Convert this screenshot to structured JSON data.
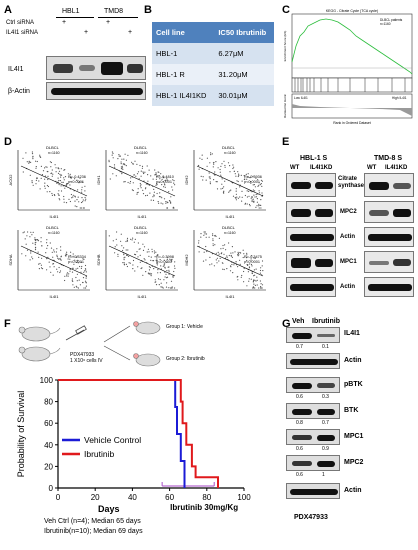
{
  "panels": {
    "A": "A",
    "B": "B",
    "C": "C",
    "D": "D",
    "E": "E",
    "F": "F",
    "G": "G"
  },
  "panel_a": {
    "cell_lines": [
      "HBL1",
      "TMD8"
    ],
    "row_labels": [
      "Ctrl siRNA",
      "IL4I1 siRNA"
    ],
    "lane_signs": {
      "ctrl": [
        "+",
        "",
        "+",
        ""
      ],
      "il4i1": [
        "",
        "+",
        "",
        "+"
      ]
    },
    "blots": [
      "IL4I1",
      "β-Actin"
    ]
  },
  "panel_b": {
    "headers": [
      "Cell line",
      "IC50 Ibrutinib"
    ],
    "rows": [
      {
        "cell": "HBL-1",
        "ic50": "6.27μM"
      },
      {
        "cell": "HBL-1 R",
        "ic50": "31.20μM"
      },
      {
        "cell": "HBL-1 IL4I1KD",
        "ic50": "30.01μM"
      }
    ]
  },
  "panel_c": {
    "title": "KEGG - Citrate Cycle (TCA cycle)",
    "stats1": "DLBCL patients",
    "stats2": "n=1160",
    "label_low": "Low IL4I1",
    "label_high": "High IL4I1",
    "xlabel": "Rank in Ordered Dataset",
    "ylabel_top": "Enrichment Score (ES)",
    "ylabel_bottom": "Ranked list metric"
  },
  "panel_d": {
    "plots": [
      {
        "title": "DLBCL",
        "n": "n=1160",
        "r": "R=-0.4236",
        "p": "p<0.0001",
        "ylabel": "ACO2",
        "xlabel": "IL4I1"
      },
      {
        "title": "DLBCL",
        "n": "n=1160",
        "r": "R=-0.4810",
        "p": "p<0.0001",
        "ylabel": "IDH1",
        "xlabel": "IL4I1"
      },
      {
        "title": "DLBCL",
        "n": "n=1160",
        "r": "R=-0.3936",
        "p": "p<0.0001",
        "ylabel": "IDH2",
        "xlabel": "IL4I1"
      },
      {
        "title": "DLBCL",
        "n": "n=1160",
        "r": "R=-0.3334",
        "p": "p<0.0001",
        "ylabel": "SDHA",
        "xlabel": "IL4I1"
      },
      {
        "title": "DLBCL",
        "n": "n=1160",
        "r": "R=-0.3998",
        "p": "p<0.0001",
        "ylabel": "SDHB",
        "xlabel": "IL4I1"
      },
      {
        "title": "DLBCL",
        "n": "n=1160",
        "r": "R=-0.3475",
        "p": "p<0.0001",
        "ylabel": "MDH2",
        "xlabel": "IL4I1"
      }
    ]
  },
  "panel_e": {
    "group1": "HBL-1 S",
    "group2": "TMD-8 S",
    "lanes1": [
      "WT",
      "IL4I1KD"
    ],
    "lanes2": [
      "WT",
      "IL4I1KD"
    ],
    "blots": [
      "Citrate synthase",
      "MPC2",
      "Actin",
      "MPC1",
      "Actin"
    ]
  },
  "panel_f": {
    "pdx": "PDX47933",
    "cells": "1 X10⁶ cells IV",
    "group1": "Group 1: Vehicle",
    "group2": "Group 2: Ibrutinib",
    "legend": [
      "Vehicle Control",
      "Ibrutinib"
    ],
    "xlabel": "Days",
    "ylabel": "Probability of Survival",
    "treatment_label": "Ibrutinib 30mg/Kg",
    "summary1": "Veh Ctrl (n=4); Median 65 days",
    "summary2": "Ibrutinib(n=10); Median 69 days",
    "colors": {
      "vehicle": "#1b1bd6",
      "ibrutinib": "#e0191c",
      "treatment": "#b76bd1"
    }
  },
  "panel_g": {
    "lanes": [
      "Veh",
      "Ibrutinib"
    ],
    "blots": [
      "IL4I1",
      "Actin",
      "pBTK",
      "BTK",
      "MPC1",
      "MPC2",
      "Actin"
    ],
    "quant": {
      "IL4I1": [
        "0.7",
        "0.1"
      ],
      "pBTK": [
        "0.6",
        "0.3"
      ],
      "BTK": [
        "0.8",
        "0.7"
      ],
      "MPC1": [
        "0.6",
        "0.9"
      ],
      "MPC2": [
        "0.6",
        "1"
      ]
    },
    "model": "PDX47933"
  },
  "chart_data": {
    "type": "line",
    "xlabel": "Days",
    "ylabel": "Probability of Survival",
    "xlim": [
      0,
      100
    ],
    "ylim": [
      0,
      100
    ],
    "xticks": [
      0,
      20,
      40,
      60,
      80,
      100
    ],
    "yticks": [
      0,
      20,
      40,
      60,
      80,
      100
    ],
    "treatment_window": [
      56,
      84
    ],
    "series": [
      {
        "name": "Vehicle Control",
        "color": "#1b1bd6",
        "steps": [
          [
            0,
            100
          ],
          [
            63,
            100
          ],
          [
            63,
            75
          ],
          [
            64,
            75
          ],
          [
            64,
            50
          ],
          [
            66,
            50
          ],
          [
            66,
            25
          ],
          [
            68,
            25
          ],
          [
            68,
            0
          ]
        ]
      },
      {
        "name": "Ibrutinib",
        "color": "#e0191c",
        "steps": [
          [
            0,
            100
          ],
          [
            66,
            100
          ],
          [
            66,
            80
          ],
          [
            67,
            80
          ],
          [
            67,
            60
          ],
          [
            69,
            60
          ],
          [
            69,
            40
          ],
          [
            72,
            40
          ],
          [
            72,
            20
          ],
          [
            74,
            20
          ],
          [
            74,
            10
          ],
          [
            86,
            10
          ],
          [
            86,
            0
          ]
        ]
      }
    ]
  }
}
